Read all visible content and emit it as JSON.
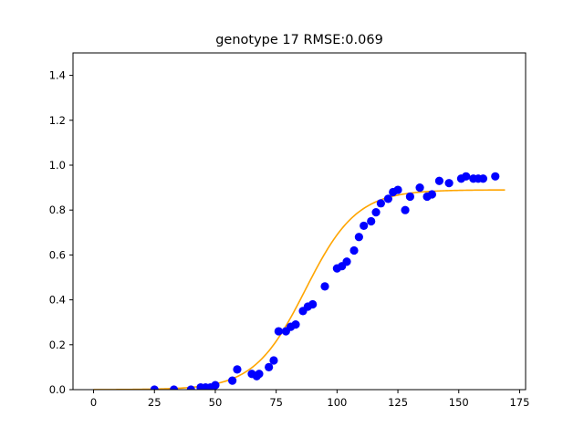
{
  "chart_data": {
    "type": "scatter",
    "title": "genotype 17 RMSE:0.069",
    "xlabel": "",
    "ylabel": "",
    "xlim": [
      -8.45,
      177.45
    ],
    "ylim": [
      0.0,
      1.5
    ],
    "x_ticks": [
      0,
      25,
      50,
      75,
      100,
      125,
      150,
      175
    ],
    "y_ticks": [
      0.0,
      0.2,
      0.4,
      0.6,
      0.8,
      1.0,
      1.2,
      1.4
    ],
    "grid": false,
    "legend": "none",
    "series": [
      {
        "kind": "points",
        "color": "#0000ff",
        "points": [
          [
            25,
            0.0
          ],
          [
            33,
            0.0
          ],
          [
            40,
            0.0
          ],
          [
            44,
            0.01
          ],
          [
            46,
            0.01
          ],
          [
            48,
            0.01
          ],
          [
            50,
            0.02
          ],
          [
            57,
            0.04
          ],
          [
            59,
            0.09
          ],
          [
            65,
            0.07
          ],
          [
            67,
            0.06
          ],
          [
            68,
            0.07
          ],
          [
            72,
            0.1
          ],
          [
            74,
            0.13
          ],
          [
            76,
            0.26
          ],
          [
            79,
            0.26
          ],
          [
            81,
            0.28
          ],
          [
            83,
            0.29
          ],
          [
            86,
            0.35
          ],
          [
            88,
            0.37
          ],
          [
            90,
            0.38
          ],
          [
            95,
            0.46
          ],
          [
            100,
            0.54
          ],
          [
            102,
            0.55
          ],
          [
            104,
            0.57
          ],
          [
            107,
            0.62
          ],
          [
            109,
            0.68
          ],
          [
            111,
            0.73
          ],
          [
            114,
            0.75
          ],
          [
            116,
            0.79
          ],
          [
            118,
            0.83
          ],
          [
            121,
            0.85
          ],
          [
            123,
            0.88
          ],
          [
            125,
            0.89
          ],
          [
            128,
            0.8
          ],
          [
            130,
            0.86
          ],
          [
            134,
            0.9
          ],
          [
            137,
            0.86
          ],
          [
            139,
            0.87
          ],
          [
            142,
            0.93
          ],
          [
            146,
            0.92
          ],
          [
            151,
            0.94
          ],
          [
            153,
            0.95
          ],
          [
            156,
            0.94
          ],
          [
            158,
            0.94
          ],
          [
            160,
            0.94
          ],
          [
            165,
            0.95
          ]
        ]
      },
      {
        "kind": "line",
        "color": "#ffa500",
        "model": "logistic",
        "asymptote": 0.89,
        "midpoint": 87,
        "rate": 0.095,
        "x_range": [
          0,
          169
        ]
      }
    ]
  }
}
